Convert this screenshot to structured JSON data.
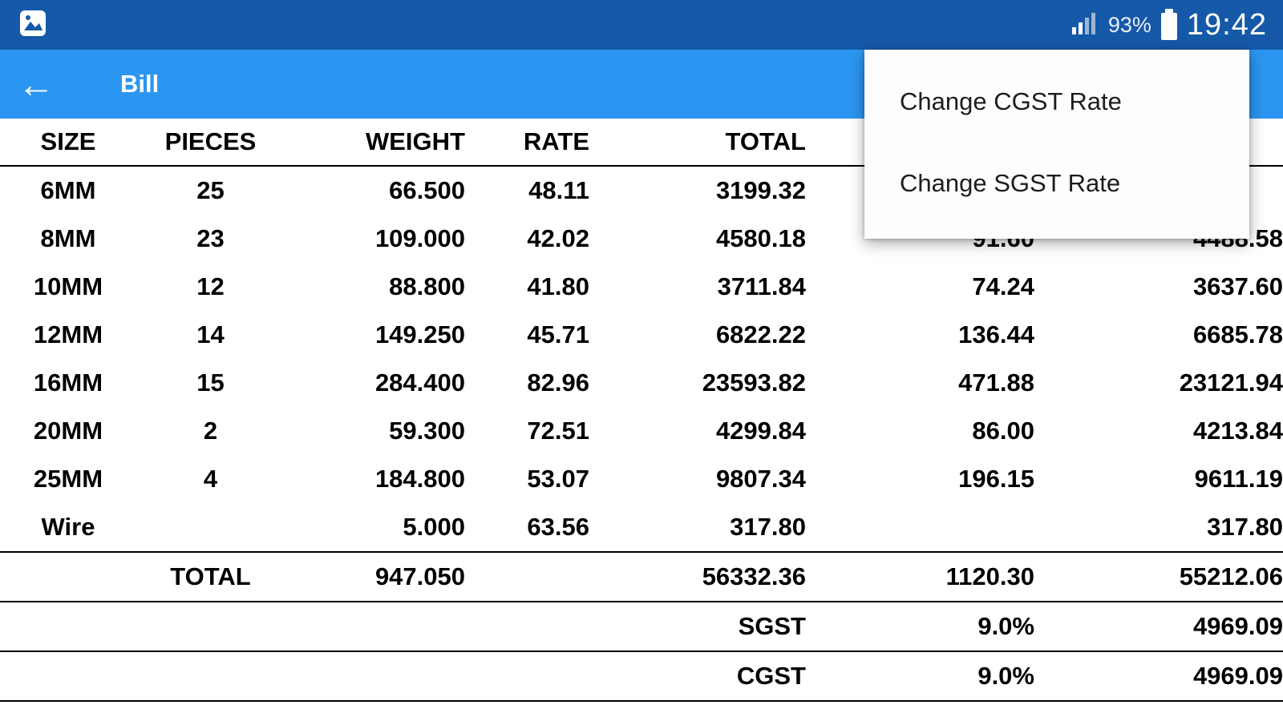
{
  "status_bar": {
    "time": "19:42",
    "battery_percent": "93%"
  },
  "app_bar": {
    "title": "Bill",
    "back_icon": "←"
  },
  "menu": {
    "items": [
      "Change CGST Rate",
      "Change SGST Rate"
    ]
  },
  "table": {
    "headers": [
      "SIZE",
      "PIECES",
      "WEIGHT",
      "RATE",
      "TOTAL",
      "",
      ""
    ],
    "rows": [
      [
        "6MM",
        "25",
        "66.500",
        "48.11",
        "3199.32",
        "",
        ""
      ],
      [
        "8MM",
        "23",
        "109.000",
        "42.02",
        "4580.18",
        "91.60",
        "4488.58"
      ],
      [
        "10MM",
        "12",
        "88.800",
        "41.80",
        "3711.84",
        "74.24",
        "3637.60"
      ],
      [
        "12MM",
        "14",
        "149.250",
        "45.71",
        "6822.22",
        "136.44",
        "6685.78"
      ],
      [
        "16MM",
        "15",
        "284.400",
        "82.96",
        "23593.82",
        "471.88",
        "23121.94"
      ],
      [
        "20MM",
        "2",
        "59.300",
        "72.51",
        "4299.84",
        "86.00",
        "4213.84"
      ],
      [
        "25MM",
        "4",
        "184.800",
        "53.07",
        "9807.34",
        "196.15",
        "9611.19"
      ],
      [
        "Wire",
        "",
        "5.000",
        "63.56",
        "317.80",
        "",
        "317.80"
      ]
    ],
    "total_row": [
      "",
      "TOTAL",
      "947.050",
      "",
      "56332.36",
      "1120.30",
      "55212.06"
    ],
    "tax_rows": [
      [
        "",
        "",
        "",
        "",
        "SGST",
        "9.0%",
        "4969.09"
      ],
      [
        "",
        "",
        "",
        "",
        "CGST",
        "9.0%",
        "4969.09"
      ]
    ]
  },
  "colors": {
    "status_bar": "#1559a8",
    "app_bar": "#2b96f1"
  }
}
